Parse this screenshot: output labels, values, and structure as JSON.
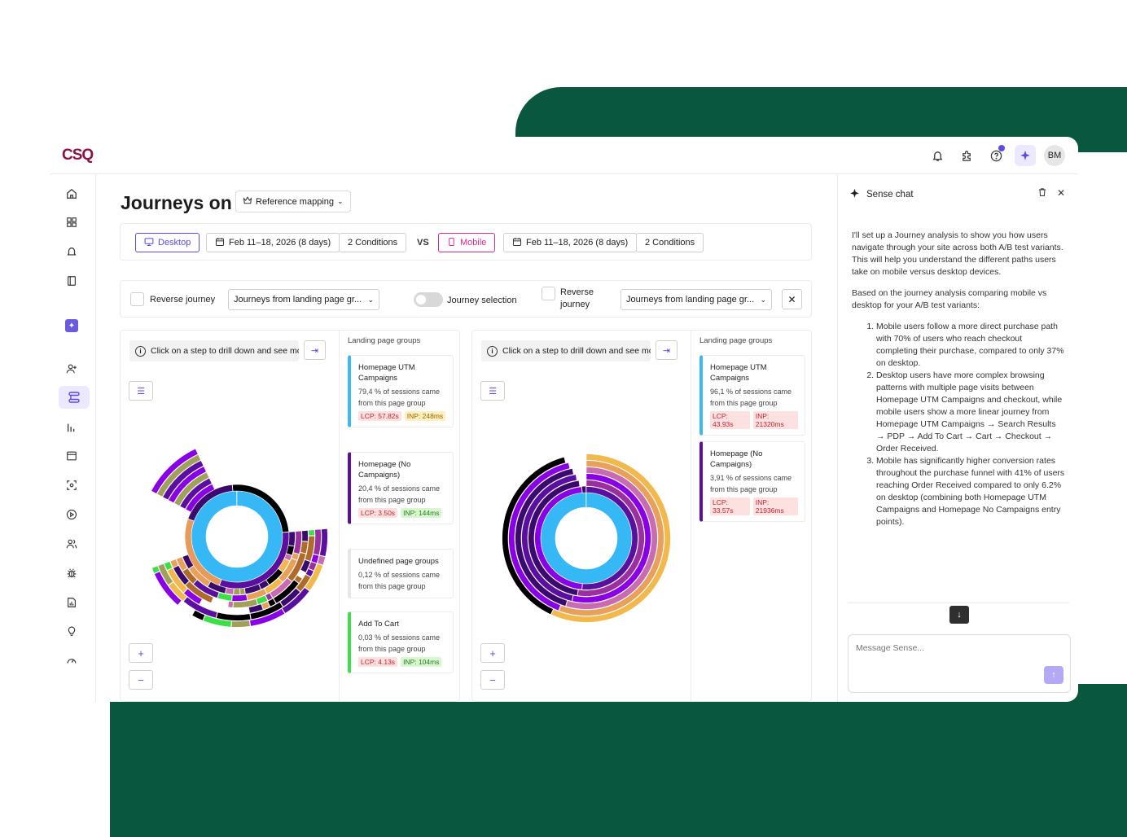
{
  "app": {
    "logo": "CSQ",
    "avatar": "BM"
  },
  "header": {
    "title": "Journeys on",
    "reference_button": "Reference mapping"
  },
  "compare": {
    "left": {
      "device": "Desktop",
      "date": "Feb 11–18, 2026 (8 days)",
      "conditions": "2 Conditions"
    },
    "vs": "VS",
    "right": {
      "device": "Mobile",
      "date": "Feb 11–18, 2026 (8 days)",
      "conditions": "2 Conditions"
    }
  },
  "filters": {
    "reverse_left": "Reverse journey",
    "select_left": "Journeys from landing page gr...",
    "journey_selection": "Journey selection",
    "reverse_right_line1": "Reverse",
    "reverse_right_line2": "journey",
    "select_right": "Journeys from landing page gr..."
  },
  "panels": {
    "hint": "Click on a step to drill down and see more",
    "groups_title": "Landing page groups",
    "left_groups": [
      {
        "name": "Homepage UTM Campaigns",
        "desc": "79,4 % of sessions came from this page group",
        "lcp": "LCP: 57.82s",
        "inp": "INP: 248ms",
        "color": "#3bb9f2"
      },
      {
        "name": "Homepage (No Campaigns)",
        "desc": "20,4 % of sessions came from this page group",
        "lcp": "LCP: 3.50s",
        "inp": "INP: 144ms",
        "color": "#5a0fa0"
      },
      {
        "name": "Undefined page groups",
        "desc": "0,12 % of sessions came from this page group",
        "lcp": "",
        "inp": "",
        "color": "#e6e6e6"
      },
      {
        "name": "Add To Cart",
        "desc": "0,03 % of sessions came from this page group",
        "lcp": "LCP: 4.13s",
        "inp": "INP: 104ms",
        "color": "#3be046"
      }
    ],
    "right_groups": [
      {
        "name": "Homepage UTM Campaigns",
        "desc": "96,1 % of sessions came from this page group",
        "lcp": "LCP: 43.93s",
        "inp": "INP: 21320ms",
        "color": "#3bb9f2"
      },
      {
        "name": "Homepage (No Campaigns)",
        "desc": "3,91 % of sessions came from this page group",
        "lcp": "LCP: 33.57s",
        "inp": "INP: 21936ms",
        "color": "#5a0fa0"
      }
    ]
  },
  "chat": {
    "title": "Sense chat",
    "intro": "I'll set up a Journey analysis to show you how users navigate through your site across both A/B test variants. This will help you understand the different paths users take on mobile versus desktop devices.",
    "lead": "Based on the journey analysis comparing mobile vs desktop for your A/B test variants:",
    "points": [
      "Mobile users follow a more direct purchase path with 70% of users who reach checkout completing their purchase, compared to only 37% on desktop.",
      "Desktop users have more complex browsing patterns with multiple page visits between Homepage UTM Campaigns and checkout, while mobile users show a more linear journey from Homepage UTM Campaigns → Search Results → PDP → Add To Cart → Cart → Checkout → Order Received.",
      "Mobile has significantly higher conversion rates throughout the purchase funnel with 41% of users reaching Order Received compared to only 6.2% on desktop (combining both Homepage UTM Campaigns and Homepage No Campaigns entry points)."
    ],
    "placeholder": "Message Sense..."
  }
}
